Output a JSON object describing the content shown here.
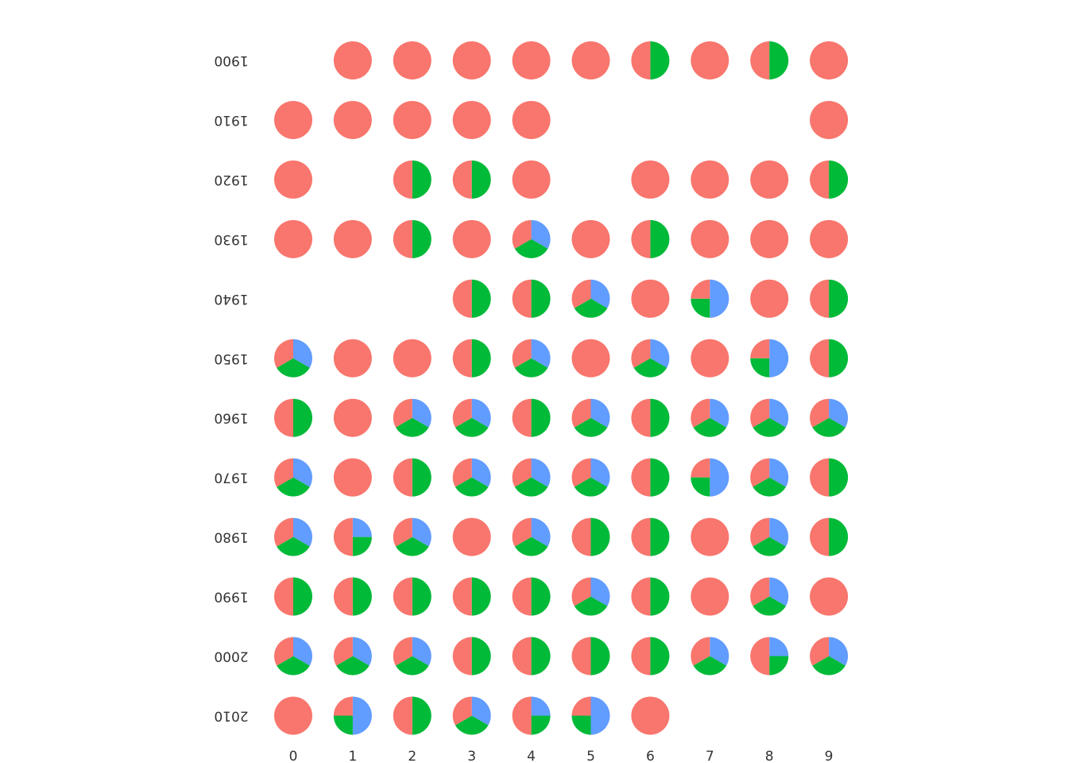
{
  "chart_data": {
    "type": "pie_grid",
    "columns": [
      "0",
      "1",
      "2",
      "3",
      "4",
      "5",
      "6",
      "7",
      "8",
      "9"
    ],
    "rows": [
      "1900",
      "1910",
      "1920",
      "1930",
      "1940",
      "1950",
      "1960",
      "1970",
      "1980",
      "1990",
      "2000",
      "2010"
    ],
    "colors": [
      "#f8766d",
      "#00ba38",
      "#619cff"
    ],
    "values": [
      [
        null,
        [
          1,
          0,
          0
        ],
        [
          1,
          0,
          0
        ],
        [
          1,
          0,
          0
        ],
        [
          1,
          0,
          0
        ],
        [
          1,
          0,
          0
        ],
        [
          1,
          1,
          0
        ],
        [
          1,
          0,
          0
        ],
        [
          1,
          1,
          0
        ],
        [
          1,
          0,
          0
        ]
      ],
      [
        [
          1,
          0,
          0
        ],
        [
          1,
          0,
          0
        ],
        [
          1,
          0,
          0
        ],
        [
          1,
          0,
          0
        ],
        [
          1,
          0,
          0
        ],
        null,
        null,
        null,
        null,
        [
          1,
          0,
          0
        ]
      ],
      [
        [
          1,
          0,
          0
        ],
        null,
        [
          1,
          1,
          0
        ],
        [
          1,
          1,
          0
        ],
        [
          1,
          0,
          0
        ],
        null,
        [
          1,
          0,
          0
        ],
        [
          1,
          0,
          0
        ],
        [
          1,
          0,
          0
        ],
        [
          1,
          1,
          0
        ]
      ],
      [
        [
          1,
          0,
          0
        ],
        [
          1,
          0,
          0
        ],
        [
          1,
          1,
          0
        ],
        [
          1,
          0,
          0
        ],
        [
          1,
          1,
          1
        ],
        [
          1,
          0,
          0
        ],
        [
          1,
          1,
          0
        ],
        [
          1,
          0,
          0
        ],
        [
          1,
          0,
          0
        ],
        [
          1,
          0,
          0
        ]
      ],
      [
        null,
        null,
        null,
        [
          1,
          1,
          0
        ],
        [
          1,
          1,
          0
        ],
        [
          1,
          1,
          1
        ],
        [
          1,
          0,
          0
        ],
        [
          1,
          1,
          2
        ],
        [
          1,
          0,
          0
        ],
        [
          1,
          1,
          0
        ]
      ],
      [
        [
          1,
          1,
          1
        ],
        [
          1,
          0,
          0
        ],
        [
          1,
          0,
          0
        ],
        [
          1,
          1,
          0
        ],
        [
          1,
          1,
          1
        ],
        [
          1,
          0,
          0
        ],
        [
          1,
          1,
          1
        ],
        [
          1,
          0,
          0
        ],
        [
          1,
          1,
          2
        ],
        [
          1,
          1,
          0
        ]
      ],
      [
        [
          1,
          1,
          0
        ],
        [
          1,
          0,
          0
        ],
        [
          1,
          1,
          1
        ],
        [
          1,
          1,
          1
        ],
        [
          1,
          1,
          0
        ],
        [
          1,
          1,
          1
        ],
        [
          1,
          1,
          0
        ],
        [
          1,
          1,
          1
        ],
        [
          1,
          1,
          1
        ],
        [
          1,
          1,
          1
        ]
      ],
      [
        [
          1,
          1,
          1
        ],
        [
          1,
          0,
          0
        ],
        [
          1,
          1,
          0
        ],
        [
          1,
          1,
          1
        ],
        [
          1,
          1,
          1
        ],
        [
          1,
          1,
          1
        ],
        [
          1,
          1,
          0
        ],
        [
          1,
          1,
          2
        ],
        [
          1,
          1,
          1
        ],
        [
          1,
          1,
          0
        ]
      ],
      [
        [
          1,
          1,
          1
        ],
        [
          2,
          1,
          1
        ],
        [
          1,
          1,
          1
        ],
        [
          1,
          0,
          0
        ],
        [
          1,
          1,
          1
        ],
        [
          1,
          1,
          0
        ],
        [
          1,
          1,
          0
        ],
        [
          1,
          0,
          0
        ],
        [
          1,
          1,
          1
        ],
        [
          1,
          1,
          0
        ]
      ],
      [
        [
          1,
          1,
          0
        ],
        [
          1,
          1,
          0
        ],
        [
          1,
          1,
          0
        ],
        [
          1,
          1,
          0
        ],
        [
          1,
          1,
          0
        ],
        [
          1,
          1,
          1
        ],
        [
          1,
          1,
          0
        ],
        [
          1,
          0,
          0
        ],
        [
          1,
          1,
          1
        ],
        [
          1,
          0,
          0
        ]
      ],
      [
        [
          1,
          1,
          1
        ],
        [
          1,
          1,
          1
        ],
        [
          1,
          1,
          1
        ],
        [
          1,
          1,
          0
        ],
        [
          1,
          1,
          0
        ],
        [
          1,
          1,
          0
        ],
        [
          1,
          1,
          0
        ],
        [
          1,
          1,
          1
        ],
        [
          2,
          1,
          1
        ],
        [
          1,
          1,
          1
        ]
      ],
      [
        [
          1,
          0,
          0
        ],
        [
          1,
          1,
          2
        ],
        [
          1,
          1,
          0
        ],
        [
          1,
          1,
          1
        ],
        [
          2,
          1,
          1
        ],
        [
          1,
          1,
          2
        ],
        [
          1,
          0,
          0
        ],
        null,
        null,
        null
      ]
    ]
  }
}
